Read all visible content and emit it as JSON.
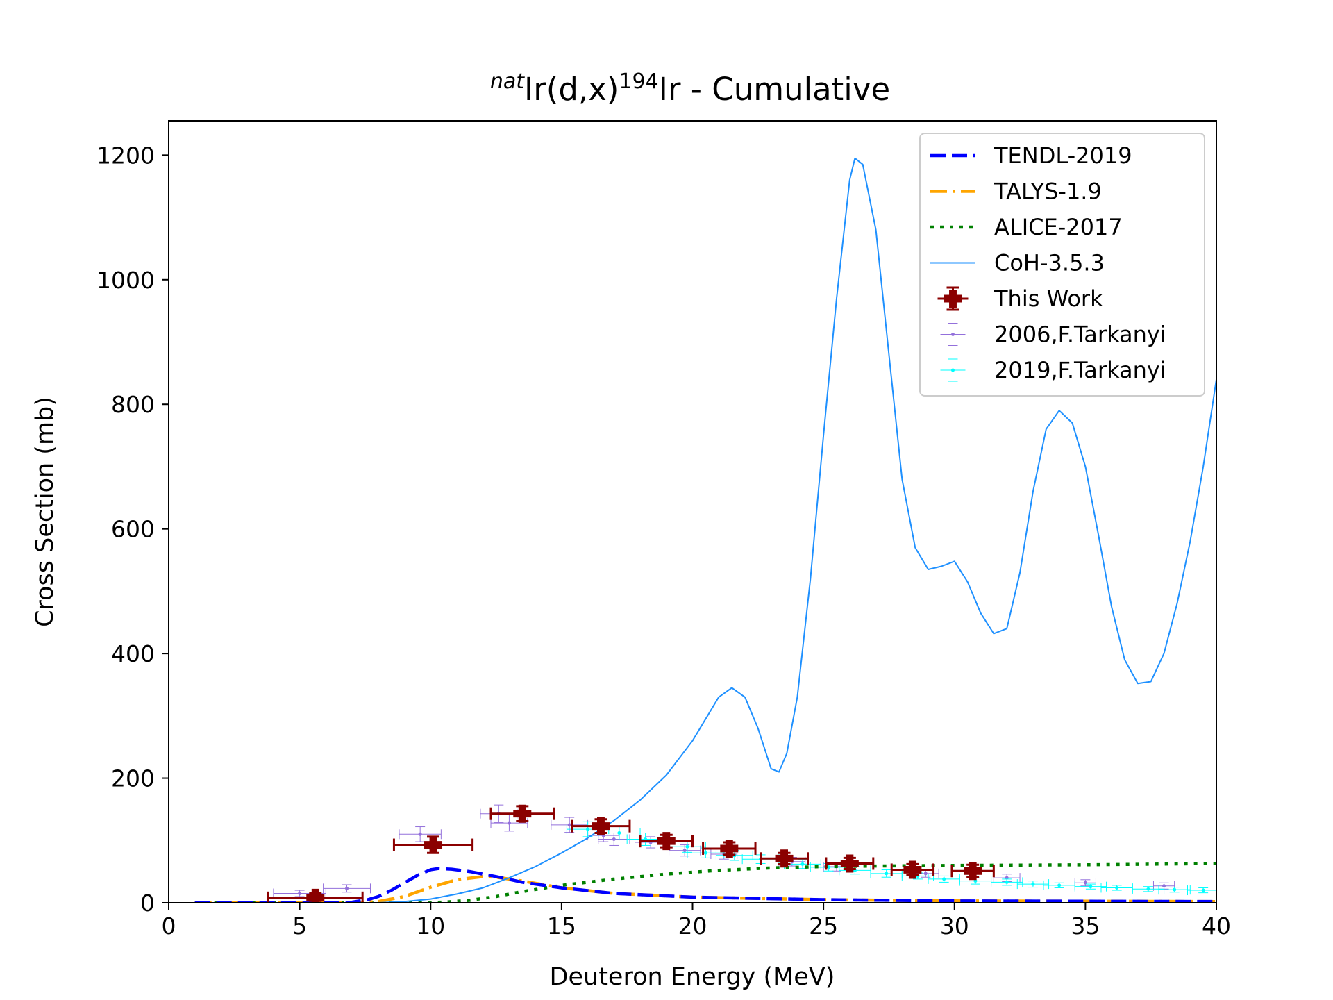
{
  "chart_data": {
    "type": "line",
    "title": {
      "prefix_superscript": "nat",
      "main_a": "Ir(d,x)",
      "mid_superscript": "194",
      "main_b": "Ir - Cumulative"
    },
    "xlabel": "Deuteron Energy (MeV)",
    "ylabel": "Cross Section (mb)",
    "xlim": [
      0,
      40
    ],
    "ylim": [
      0,
      1255
    ],
    "xticks": [
      0,
      5,
      10,
      15,
      20,
      25,
      30,
      35,
      40
    ],
    "yticks": [
      0,
      200,
      400,
      600,
      800,
      1000,
      1200
    ],
    "grid": false,
    "legend_position": "upper right",
    "series": [
      {
        "name": "TENDL-2019",
        "kind": "line",
        "style": "dashed",
        "color": "#0000ff",
        "points": [
          [
            1.0,
            0
          ],
          [
            5.0,
            0
          ],
          [
            7.0,
            1
          ],
          [
            7.6,
            5
          ],
          [
            8.0,
            10
          ],
          [
            8.5,
            20
          ],
          [
            9.0,
            32
          ],
          [
            9.5,
            44
          ],
          [
            10.0,
            53
          ],
          [
            10.3,
            55
          ],
          [
            10.8,
            54
          ],
          [
            11.5,
            50
          ],
          [
            12.5,
            42
          ],
          [
            13.5,
            33
          ],
          [
            15.0,
            24
          ],
          [
            17.0,
            15
          ],
          [
            20.0,
            9
          ],
          [
            25.0,
            5
          ],
          [
            30.0,
            3
          ],
          [
            40.0,
            2
          ]
        ]
      },
      {
        "name": "TALYS-1.9",
        "kind": "line",
        "style": "dashdot",
        "color": "#ffa500",
        "points": [
          [
            1.0,
            0
          ],
          [
            7.0,
            0
          ],
          [
            8.0,
            2
          ],
          [
            9.0,
            10
          ],
          [
            10.0,
            25
          ],
          [
            11.0,
            37
          ],
          [
            12.0,
            42
          ],
          [
            12.5,
            41
          ],
          [
            13.5,
            35
          ],
          [
            15.0,
            24
          ],
          [
            17.0,
            15
          ],
          [
            20.0,
            9
          ],
          [
            25.0,
            5
          ],
          [
            30.0,
            3
          ],
          [
            40.0,
            2
          ]
        ]
      },
      {
        "name": "ALICE-2017",
        "kind": "line",
        "style": "dotted",
        "color": "#008000",
        "points": [
          [
            1.0,
            0
          ],
          [
            9.5,
            0
          ],
          [
            10.5,
            1
          ],
          [
            11.5,
            4
          ],
          [
            12.5,
            10
          ],
          [
            13.5,
            18
          ],
          [
            15.0,
            28
          ],
          [
            17.0,
            38
          ],
          [
            19.0,
            46
          ],
          [
            21.0,
            52
          ],
          [
            23.0,
            56
          ],
          [
            25.0,
            58
          ],
          [
            27.0,
            59
          ],
          [
            30.0,
            60
          ],
          [
            35.0,
            61
          ],
          [
            40.0,
            63
          ]
        ]
      },
      {
        "name": "CoH-3.5.3",
        "kind": "line",
        "style": "solid",
        "color": "#1e90ff",
        "points": [
          [
            8.0,
            0
          ],
          [
            9.0,
            2
          ],
          [
            10.0,
            6
          ],
          [
            11.0,
            14
          ],
          [
            12.0,
            24
          ],
          [
            13.0,
            40
          ],
          [
            14.0,
            58
          ],
          [
            15.0,
            80
          ],
          [
            16.0,
            104
          ],
          [
            17.0,
            132
          ],
          [
            18.0,
            165
          ],
          [
            19.0,
            205
          ],
          [
            20.0,
            260
          ],
          [
            21.0,
            330
          ],
          [
            21.5,
            345
          ],
          [
            22.0,
            330
          ],
          [
            22.5,
            280
          ],
          [
            23.0,
            215
          ],
          [
            23.3,
            210
          ],
          [
            23.6,
            240
          ],
          [
            24.0,
            330
          ],
          [
            24.5,
            520
          ],
          [
            25.0,
            750
          ],
          [
            25.5,
            970
          ],
          [
            26.0,
            1160
          ],
          [
            26.2,
            1195
          ],
          [
            26.5,
            1185
          ],
          [
            27.0,
            1080
          ],
          [
            27.5,
            880
          ],
          [
            28.0,
            680
          ],
          [
            28.5,
            570
          ],
          [
            29.0,
            535
          ],
          [
            29.5,
            540
          ],
          [
            30.0,
            548
          ],
          [
            30.5,
            515
          ],
          [
            31.0,
            465
          ],
          [
            31.5,
            432
          ],
          [
            32.0,
            440
          ],
          [
            32.5,
            530
          ],
          [
            33.0,
            660
          ],
          [
            33.5,
            760
          ],
          [
            34.0,
            790
          ],
          [
            34.5,
            770
          ],
          [
            35.0,
            700
          ],
          [
            35.5,
            590
          ],
          [
            36.0,
            475
          ],
          [
            36.5,
            390
          ],
          [
            37.0,
            352
          ],
          [
            37.5,
            355
          ],
          [
            38.0,
            400
          ],
          [
            38.5,
            480
          ],
          [
            39.0,
            580
          ],
          [
            39.5,
            700
          ],
          [
            40.0,
            840
          ]
        ]
      },
      {
        "name": "This Work",
        "kind": "errorbar",
        "color": "#8b0000",
        "points": [
          {
            "x": 5.6,
            "y": 8,
            "xerr": 1.8,
            "yerr": 8
          },
          {
            "x": 10.1,
            "y": 93,
            "xerr": 1.5,
            "yerr": 13
          },
          {
            "x": 13.5,
            "y": 143,
            "xerr": 1.2,
            "yerr": 12
          },
          {
            "x": 16.5,
            "y": 123,
            "xerr": 1.1,
            "yerr": 11
          },
          {
            "x": 19.0,
            "y": 99,
            "xerr": 1.0,
            "yerr": 10
          },
          {
            "x": 21.4,
            "y": 87,
            "xerr": 1.0,
            "yerr": 10
          },
          {
            "x": 23.5,
            "y": 71,
            "xerr": 0.9,
            "yerr": 9
          },
          {
            "x": 26.0,
            "y": 63,
            "xerr": 0.9,
            "yerr": 9
          },
          {
            "x": 28.4,
            "y": 53,
            "xerr": 0.8,
            "yerr": 9
          },
          {
            "x": 30.7,
            "y": 51,
            "xerr": 0.8,
            "yerr": 10
          }
        ]
      },
      {
        "name": "2006,F.Tarkanyi",
        "kind": "errorbar",
        "color": "#9370db",
        "points": [
          {
            "x": 5.0,
            "y": 15,
            "xerr": 1.0,
            "yerr": 5
          },
          {
            "x": 6.8,
            "y": 23,
            "xerr": 0.9,
            "yerr": 6
          },
          {
            "x": 9.6,
            "y": 110,
            "xerr": 0.8,
            "yerr": 12
          },
          {
            "x": 12.6,
            "y": 143,
            "xerr": 0.7,
            "yerr": 14
          },
          {
            "x": 13.0,
            "y": 128,
            "xerr": 0.7,
            "yerr": 13
          },
          {
            "x": 15.3,
            "y": 125,
            "xerr": 0.7,
            "yerr": 12
          },
          {
            "x": 16.6,
            "y": 108,
            "xerr": 0.6,
            "yerr": 10
          },
          {
            "x": 17.0,
            "y": 102,
            "xerr": 0.6,
            "yerr": 10
          },
          {
            "x": 18.4,
            "y": 97,
            "xerr": 0.6,
            "yerr": 9
          },
          {
            "x": 19.7,
            "y": 84,
            "xerr": 0.6,
            "yerr": 9
          },
          {
            "x": 21.2,
            "y": 78,
            "xerr": 0.5,
            "yerr": 8
          },
          {
            "x": 23.8,
            "y": 66,
            "xerr": 0.5,
            "yerr": 7
          },
          {
            "x": 25.5,
            "y": 58,
            "xerr": 0.5,
            "yerr": 7
          },
          {
            "x": 28.9,
            "y": 47,
            "xerr": 0.5,
            "yerr": 6
          },
          {
            "x": 32.0,
            "y": 40,
            "xerr": 0.5,
            "yerr": 6
          },
          {
            "x": 35.0,
            "y": 32,
            "xerr": 0.4,
            "yerr": 5
          },
          {
            "x": 38.0,
            "y": 27,
            "xerr": 0.4,
            "yerr": 5
          }
        ]
      },
      {
        "name": "2019,F.Tarkanyi",
        "kind": "errorbar",
        "color": "#00ffff",
        "points": [
          {
            "x": 16.0,
            "y": 118,
            "xerr": 0.8,
            "yerr": 12
          },
          {
            "x": 17.2,
            "y": 112,
            "xerr": 0.8,
            "yerr": 11
          },
          {
            "x": 18.2,
            "y": 102,
            "xerr": 0.7,
            "yerr": 10
          },
          {
            "x": 19.8,
            "y": 90,
            "xerr": 0.7,
            "yerr": 9
          },
          {
            "x": 20.5,
            "y": 80,
            "xerr": 0.7,
            "yerr": 8
          },
          {
            "x": 21.6,
            "y": 76,
            "xerr": 0.7,
            "yerr": 8
          },
          {
            "x": 22.6,
            "y": 70,
            "xerr": 0.7,
            "yerr": 7
          },
          {
            "x": 24.2,
            "y": 62,
            "xerr": 0.7,
            "yerr": 7
          },
          {
            "x": 25.2,
            "y": 57,
            "xerr": 0.7,
            "yerr": 6
          },
          {
            "x": 26.2,
            "y": 52,
            "xerr": 0.6,
            "yerr": 6
          },
          {
            "x": 27.4,
            "y": 47,
            "xerr": 0.6,
            "yerr": 6
          },
          {
            "x": 28.6,
            "y": 43,
            "xerr": 0.6,
            "yerr": 5
          },
          {
            "x": 29.6,
            "y": 38,
            "xerr": 0.6,
            "yerr": 5
          },
          {
            "x": 30.8,
            "y": 35,
            "xerr": 0.6,
            "yerr": 5
          },
          {
            "x": 32.0,
            "y": 33,
            "xerr": 0.6,
            "yerr": 5
          },
          {
            "x": 33.0,
            "y": 30,
            "xerr": 0.6,
            "yerr": 5
          },
          {
            "x": 34.0,
            "y": 28,
            "xerr": 0.6,
            "yerr": 4
          },
          {
            "x": 35.2,
            "y": 26,
            "xerr": 0.6,
            "yerr": 4
          },
          {
            "x": 36.2,
            "y": 24,
            "xerr": 0.6,
            "yerr": 4
          },
          {
            "x": 37.4,
            "y": 22,
            "xerr": 0.6,
            "yerr": 4
          },
          {
            "x": 38.4,
            "y": 21,
            "xerr": 0.6,
            "yerr": 4
          },
          {
            "x": 39.5,
            "y": 20,
            "xerr": 0.6,
            "yerr": 4
          }
        ]
      }
    ]
  }
}
